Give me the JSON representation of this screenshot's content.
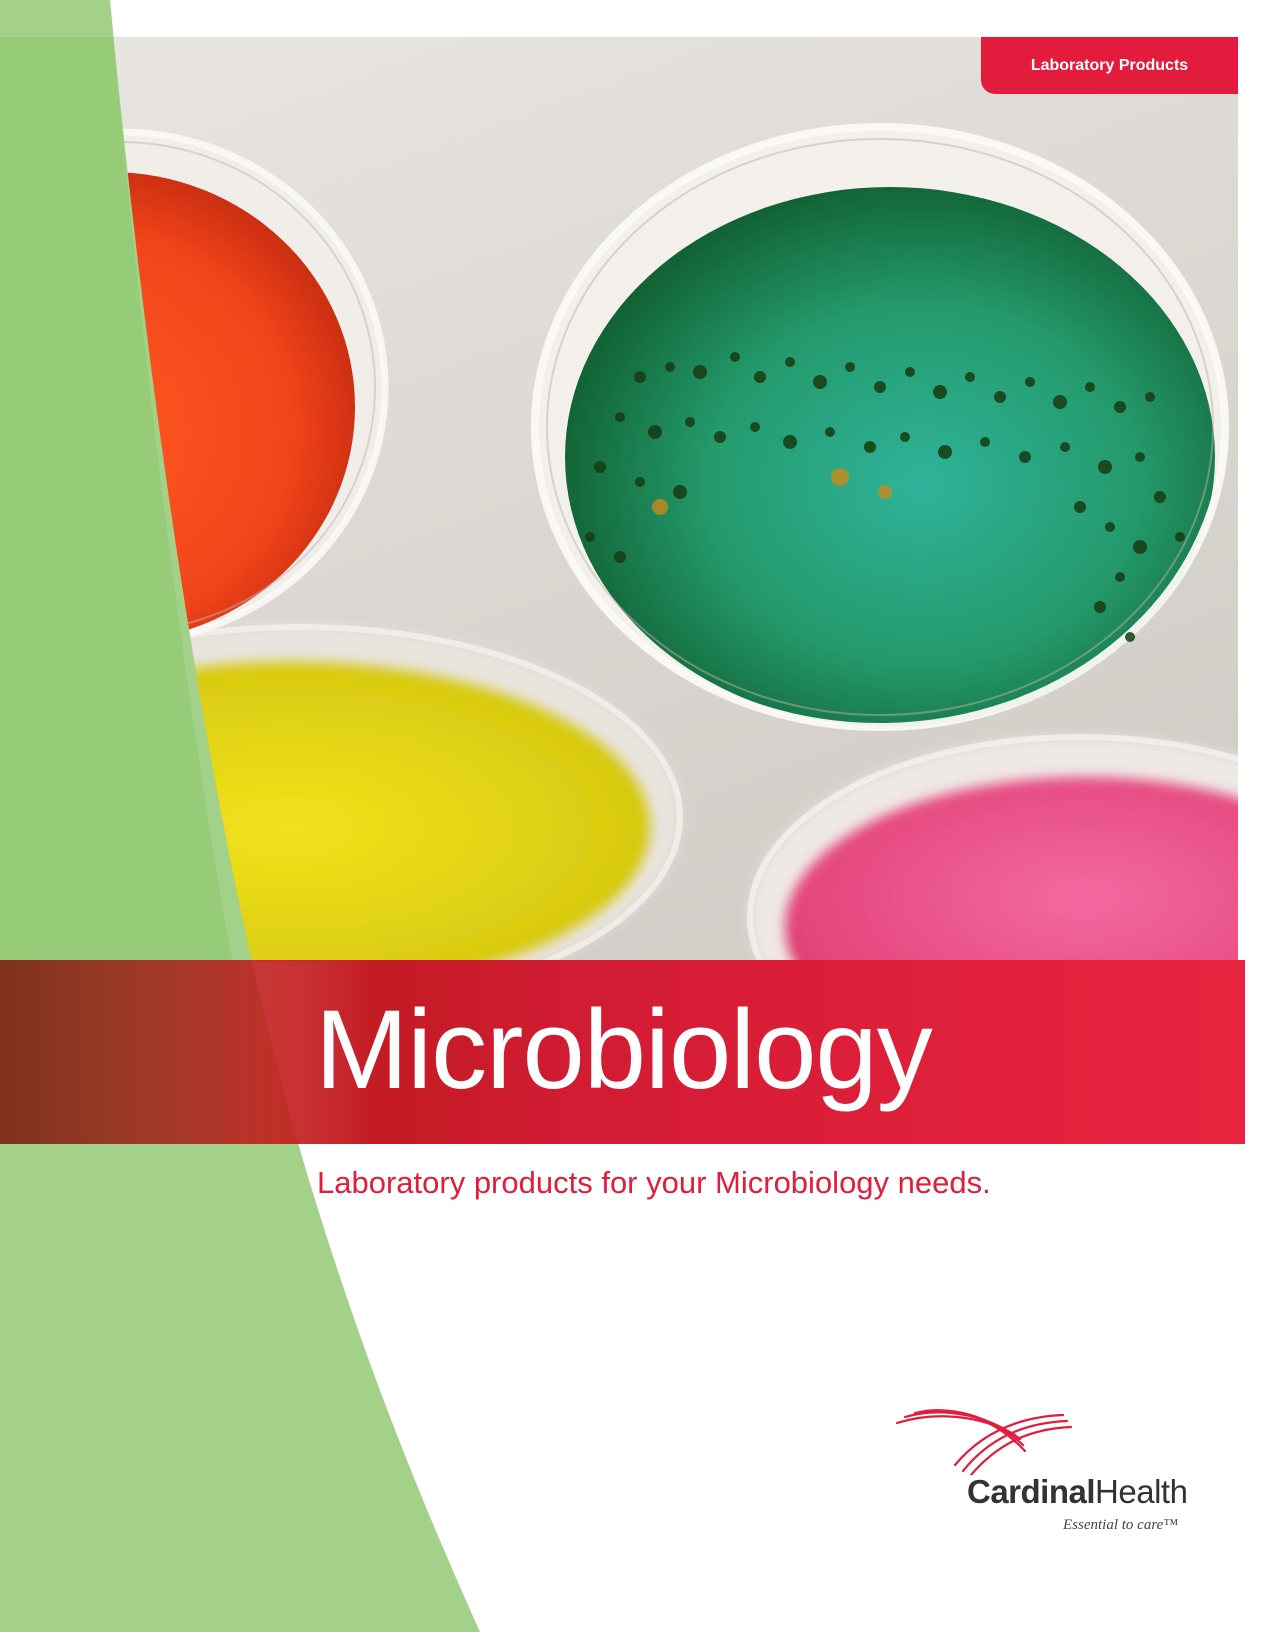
{
  "header": {
    "category_tab": "Laboratory Products"
  },
  "cover": {
    "title": "Microbiology",
    "subtitle": "Laboratory products for your Microbiology needs."
  },
  "logo": {
    "name_bold": "Cardinal",
    "name_light": "Health",
    "tagline": "Essential to care™"
  },
  "colors": {
    "brand_red": "#e31c3d",
    "accent_green": "#a3d18a"
  }
}
